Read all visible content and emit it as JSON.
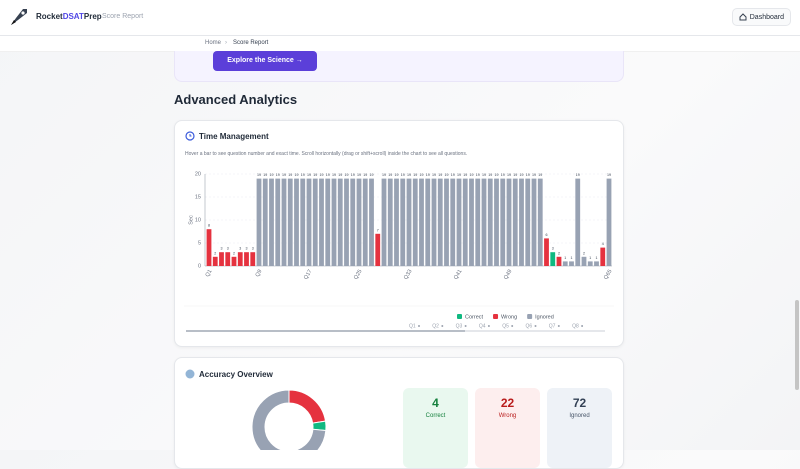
{
  "header": {
    "brand_prefix": "Rocket",
    "brand_highlight": "DSAT",
    "brand_suffix": "Prep",
    "subtitle": "Score Report",
    "button": "Dashboard"
  },
  "breadcrumb": [
    "Home",
    "Score Report"
  ],
  "banner_button": "Explore the Science",
  "section_title": "Advanced Analytics",
  "navigator": [
    "Q1",
    "Q2",
    "Q3",
    "Q4",
    "Q5",
    "Q6",
    "Q7",
    "Q8"
  ],
  "chart_data": [
    {
      "type": "bar",
      "title": "Time Management",
      "subtitle": "Hover a bar to see question number and exact time. Scroll horizontally (drag or shift+scroll) inside the chart to see all questions.",
      "y_label": "Sec",
      "ylim": [
        0,
        20
      ],
      "yticks": [
        0,
        5,
        10,
        15,
        20
      ],
      "grid": true,
      "categories": [
        "Q1",
        null,
        null,
        null,
        null,
        null,
        null,
        null,
        "Q9",
        null,
        null,
        null,
        null,
        null,
        null,
        null,
        "Q17",
        null,
        null,
        null,
        null,
        null,
        null,
        null,
        "Q25",
        null,
        null,
        null,
        null,
        null,
        null,
        null,
        "Q33",
        null,
        null,
        null,
        null,
        null,
        null,
        null,
        "Q41",
        null,
        null,
        null,
        null,
        null,
        null,
        null,
        "Q49",
        null,
        null,
        null,
        null,
        null,
        null,
        null,
        null,
        null,
        null,
        null,
        null,
        null,
        null,
        null,
        "Q65"
      ],
      "series": [
        {
          "name": "Correct",
          "color": "#10b981",
          "values": [
            null,
            null,
            null,
            null,
            null,
            null,
            null,
            null,
            null,
            null,
            null,
            null,
            null,
            null,
            null,
            null,
            null,
            null,
            null,
            null,
            null,
            null,
            null,
            null,
            null,
            null,
            null,
            null,
            null,
            null,
            null,
            null,
            null,
            null,
            null,
            null,
            null,
            null,
            null,
            null,
            null,
            null,
            null,
            null,
            null,
            null,
            null,
            null,
            null,
            null,
            null,
            null,
            null,
            null,
            null,
            3,
            null,
            null,
            null,
            null,
            null,
            null,
            null,
            null,
            null
          ]
        },
        {
          "name": "Wrong",
          "color": "#e5323f",
          "values": [
            8,
            2,
            3,
            3,
            2,
            3,
            3,
            3,
            null,
            null,
            null,
            null,
            null,
            null,
            null,
            null,
            null,
            null,
            null,
            null,
            null,
            null,
            null,
            null,
            null,
            null,
            null,
            7,
            null,
            null,
            null,
            null,
            null,
            null,
            null,
            null,
            null,
            null,
            null,
            null,
            null,
            null,
            null,
            null,
            null,
            null,
            null,
            null,
            null,
            null,
            null,
            null,
            null,
            null,
            6,
            null,
            2,
            null,
            null,
            null,
            null,
            null,
            null,
            4,
            null
          ]
        },
        {
          "name": "Ignored",
          "color": "#98a2b3",
          "values": [
            null,
            null,
            null,
            null,
            null,
            null,
            null,
            null,
            19,
            19,
            19,
            19,
            19,
            19,
            19,
            19,
            19,
            19,
            19,
            19,
            19,
            19,
            19,
            19,
            19,
            19,
            19,
            null,
            19,
            19,
            19,
            19,
            19,
            19,
            19,
            19,
            19,
            19,
            19,
            19,
            19,
            19,
            19,
            19,
            19,
            19,
            19,
            19,
            19,
            19,
            19,
            19,
            19,
            19,
            null,
            null,
            null,
            1,
            1,
            19,
            2,
            1,
            1,
            null,
            19
          ]
        }
      ]
    },
    {
      "type": "pie",
      "title": "Accuracy Overview",
      "categories": [
        "Wrong",
        "Correct",
        "Ignored"
      ],
      "values": [
        22,
        4,
        72
      ],
      "colors": [
        "#e5323f",
        "#10b981",
        "#98a2b3"
      ]
    }
  ]
}
